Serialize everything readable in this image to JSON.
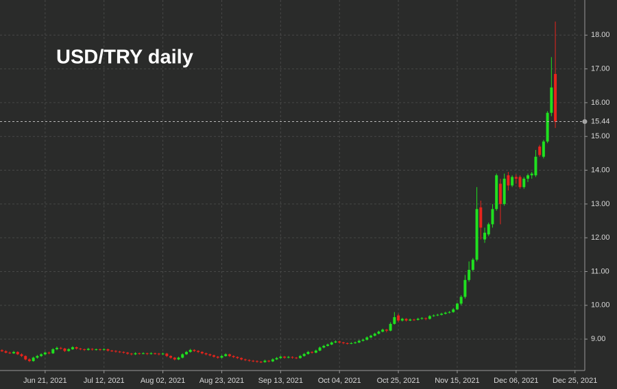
{
  "chart_data": {
    "type": "candlestick",
    "title": "USD/TRY daily",
    "up_color": "#1fe01f",
    "down_color": "#e8241c",
    "grid": true,
    "last_price": 15.44,
    "xlim": [
      "2021-06-04",
      "2021-12-30"
    ],
    "ylim": [
      8.07,
      19.04
    ],
    "xticks": [
      {
        "value": "2021-06-21",
        "label": "Jun 21, 2021"
      },
      {
        "value": "2021-07-12",
        "label": "Jul 12, 2021"
      },
      {
        "value": "2021-08-02",
        "label": "Aug 02, 2021"
      },
      {
        "value": "2021-08-23",
        "label": "Aug 23, 2021"
      },
      {
        "value": "2021-09-13",
        "label": "Sep 13, 2021"
      },
      {
        "value": "2021-10-04",
        "label": "Oct 04, 2021"
      },
      {
        "value": "2021-10-25",
        "label": "Oct 25, 2021"
      },
      {
        "value": "2021-11-15",
        "label": "Nov 15, 2021"
      },
      {
        "value": "2021-12-06",
        "label": "Dec 06, 2021"
      },
      {
        "value": "2021-12-25",
        "label": "Dec 25, 2021"
      }
    ],
    "yticks": [
      {
        "value": 9,
        "label": "9.00"
      },
      {
        "value": 10,
        "label": "10.00"
      },
      {
        "value": 11,
        "label": "11.00"
      },
      {
        "value": 12,
        "label": "12.00"
      },
      {
        "value": 13,
        "label": "13.00"
      },
      {
        "value": 14,
        "label": "14.00"
      },
      {
        "value": 15,
        "label": "15.00"
      },
      {
        "value": 16,
        "label": "16.00"
      },
      {
        "value": 17,
        "label": "17.00"
      },
      {
        "value": 18,
        "label": "18.00"
      }
    ],
    "x": [
      "2021-06-04",
      "2021-06-07",
      "2021-06-08",
      "2021-06-09",
      "2021-06-10",
      "2021-06-11",
      "2021-06-14",
      "2021-06-15",
      "2021-06-16",
      "2021-06-17",
      "2021-06-18",
      "2021-06-21",
      "2021-06-22",
      "2021-06-23",
      "2021-06-24",
      "2021-06-25",
      "2021-06-28",
      "2021-06-29",
      "2021-06-30",
      "2021-07-01",
      "2021-07-02",
      "2021-07-05",
      "2021-07-06",
      "2021-07-07",
      "2021-07-08",
      "2021-07-09",
      "2021-07-12",
      "2021-07-13",
      "2021-07-14",
      "2021-07-15",
      "2021-07-16",
      "2021-07-19",
      "2021-07-20",
      "2021-07-21",
      "2021-07-22",
      "2021-07-23",
      "2021-07-26",
      "2021-07-27",
      "2021-07-28",
      "2021-07-29",
      "2021-07-30",
      "2021-08-02",
      "2021-08-03",
      "2021-08-04",
      "2021-08-05",
      "2021-08-06",
      "2021-08-09",
      "2021-08-10",
      "2021-08-11",
      "2021-08-12",
      "2021-08-13",
      "2021-08-16",
      "2021-08-17",
      "2021-08-18",
      "2021-08-19",
      "2021-08-20",
      "2021-08-23",
      "2021-08-24",
      "2021-08-25",
      "2021-08-26",
      "2021-08-27",
      "2021-08-30",
      "2021-08-31",
      "2021-09-01",
      "2021-09-02",
      "2021-09-03",
      "2021-09-06",
      "2021-09-07",
      "2021-09-08",
      "2021-09-09",
      "2021-09-10",
      "2021-09-13",
      "2021-09-14",
      "2021-09-15",
      "2021-09-16",
      "2021-09-17",
      "2021-09-20",
      "2021-09-21",
      "2021-09-22",
      "2021-09-23",
      "2021-09-24",
      "2021-09-27",
      "2021-09-28",
      "2021-09-29",
      "2021-09-30",
      "2021-10-01",
      "2021-10-04",
      "2021-10-05",
      "2021-10-06",
      "2021-10-07",
      "2021-10-08",
      "2021-10-11",
      "2021-10-12",
      "2021-10-13",
      "2021-10-14",
      "2021-10-15",
      "2021-10-18",
      "2021-10-19",
      "2021-10-20",
      "2021-10-21",
      "2021-10-22",
      "2021-10-25",
      "2021-10-26",
      "2021-10-27",
      "2021-10-28",
      "2021-10-29",
      "2021-11-01",
      "2021-11-02",
      "2021-11-03",
      "2021-11-04",
      "2021-11-05",
      "2021-11-08",
      "2021-11-09",
      "2021-11-10",
      "2021-11-11",
      "2021-11-12",
      "2021-11-15",
      "2021-11-16",
      "2021-11-17",
      "2021-11-18",
      "2021-11-19",
      "2021-11-22",
      "2021-11-23",
      "2021-11-24",
      "2021-11-25",
      "2021-11-26",
      "2021-11-29",
      "2021-11-30",
      "2021-12-01",
      "2021-12-02",
      "2021-12-03",
      "2021-12-06",
      "2021-12-07",
      "2021-12-08",
      "2021-12-09",
      "2021-12-10",
      "2021-12-13",
      "2021-12-14",
      "2021-12-15",
      "2021-12-16",
      "2021-12-17",
      "2021-12-20"
    ],
    "open": [
      8.67,
      8.64,
      8.6,
      8.58,
      8.62,
      8.55,
      8.5,
      8.4,
      8.35,
      8.45,
      8.5,
      8.55,
      8.6,
      8.58,
      8.7,
      8.74,
      8.72,
      8.65,
      8.7,
      8.76,
      8.72,
      8.7,
      8.68,
      8.71,
      8.69,
      8.7,
      8.68,
      8.7,
      8.66,
      8.65,
      8.63,
      8.62,
      8.6,
      8.57,
      8.55,
      8.58,
      8.57,
      8.58,
      8.56,
      8.58,
      8.57,
      8.55,
      8.57,
      8.5,
      8.45,
      8.4,
      8.45,
      8.55,
      8.62,
      8.68,
      8.65,
      8.62,
      8.58,
      8.55,
      8.52,
      8.48,
      8.45,
      8.5,
      8.55,
      8.5,
      8.47,
      8.44,
      8.4,
      8.38,
      8.36,
      8.35,
      8.33,
      8.32,
      8.36,
      8.34,
      8.4,
      8.44,
      8.48,
      8.45,
      8.47,
      8.45,
      8.44,
      8.5,
      8.56,
      8.62,
      8.6,
      8.66,
      8.75,
      8.8,
      8.84,
      8.9,
      8.93,
      8.9,
      8.88,
      8.87,
      8.88,
      8.9,
      8.95,
      8.98,
      9.05,
      9.1,
      9.16,
      9.22,
      9.28,
      9.25,
      9.45,
      9.7,
      9.55,
      9.6,
      9.55,
      9.58,
      9.57,
      9.6,
      9.62,
      9.6,
      9.68,
      9.7,
      9.72,
      9.75,
      9.78,
      9.8,
      9.88,
      10.05,
      10.25,
      10.75,
      11.05,
      11.35,
      12.9,
      11.95,
      12.1,
      12.4,
      12.85,
      13.6,
      13.0,
      13.85,
      13.55,
      13.8,
      13.8,
      13.5,
      13.75,
      13.85,
      13.85,
      14.7,
      14.4,
      14.85,
      15.7,
      16.85
    ],
    "high": [
      8.7,
      8.67,
      8.63,
      8.65,
      8.64,
      8.58,
      8.52,
      8.43,
      8.48,
      8.53,
      8.58,
      8.63,
      8.63,
      8.73,
      8.78,
      8.77,
      8.74,
      8.73,
      8.79,
      8.78,
      8.74,
      8.72,
      8.74,
      8.73,
      8.72,
      8.72,
      8.73,
      8.72,
      8.68,
      8.67,
      8.65,
      8.64,
      8.62,
      8.59,
      8.61,
      8.6,
      8.61,
      8.6,
      8.61,
      8.6,
      8.59,
      8.6,
      8.59,
      8.52,
      8.47,
      8.48,
      8.58,
      8.65,
      8.71,
      8.7,
      8.67,
      8.64,
      8.6,
      8.57,
      8.54,
      8.5,
      8.53,
      8.58,
      8.57,
      8.52,
      8.49,
      8.46,
      8.42,
      8.4,
      8.38,
      8.37,
      8.35,
      8.39,
      8.38,
      8.43,
      8.47,
      8.51,
      8.5,
      8.5,
      8.49,
      8.47,
      8.53,
      8.59,
      8.65,
      8.64,
      8.69,
      8.78,
      8.83,
      8.87,
      8.93,
      8.96,
      8.95,
      8.92,
      8.9,
      8.91,
      8.93,
      8.98,
      9.01,
      9.08,
      9.13,
      9.19,
      9.25,
      9.31,
      9.3,
      9.5,
      9.8,
      9.75,
      9.63,
      9.62,
      9.61,
      9.6,
      9.63,
      9.65,
      9.64,
      9.71,
      9.73,
      9.75,
      9.78,
      9.81,
      9.83,
      9.92,
      10.08,
      10.3,
      10.9,
      11.3,
      11.4,
      13.5,
      13.1,
      12.3,
      12.45,
      13.0,
      13.9,
      13.75,
      13.9,
      13.95,
      13.85,
      13.88,
      13.85,
      13.8,
      13.9,
      13.95,
      14.6,
      14.75,
      14.9,
      15.75,
      17.35,
      18.4
    ],
    "low": [
      8.62,
      8.58,
      8.56,
      8.56,
      8.53,
      8.47,
      8.37,
      8.32,
      8.33,
      8.42,
      8.47,
      8.52,
      8.55,
      8.56,
      8.67,
      8.69,
      8.62,
      8.63,
      8.68,
      8.69,
      8.67,
      8.65,
      8.66,
      8.66,
      8.66,
      8.65,
      8.66,
      8.63,
      8.62,
      8.6,
      8.59,
      8.57,
      8.54,
      8.52,
      8.53,
      8.54,
      8.55,
      8.53,
      8.54,
      8.54,
      8.52,
      8.53,
      8.47,
      8.42,
      8.37,
      8.38,
      8.43,
      8.53,
      8.6,
      8.62,
      8.59,
      8.55,
      8.52,
      8.49,
      8.45,
      8.42,
      8.43,
      8.48,
      8.47,
      8.44,
      8.41,
      8.37,
      8.35,
      8.33,
      8.32,
      8.3,
      8.29,
      8.3,
      8.31,
      8.32,
      8.38,
      8.42,
      8.42,
      8.43,
      8.42,
      8.41,
      8.42,
      8.48,
      8.54,
      8.57,
      8.58,
      8.64,
      8.73,
      8.78,
      8.82,
      8.88,
      8.87,
      8.85,
      8.84,
      8.85,
      8.86,
      8.88,
      8.93,
      8.96,
      9.03,
      9.08,
      9.14,
      9.2,
      9.2,
      9.23,
      9.43,
      9.5,
      9.52,
      9.52,
      9.53,
      9.54,
      9.55,
      9.58,
      9.56,
      9.58,
      9.66,
      9.68,
      9.7,
      9.73,
      9.76,
      9.78,
      9.86,
      10.0,
      10.2,
      10.7,
      11.0,
      11.3,
      11.95,
      11.85,
      12.05,
      12.3,
      12.8,
      12.4,
      12.95,
      13.4,
      13.5,
      13.6,
      13.45,
      13.45,
      13.65,
      13.75,
      13.8,
      14.4,
      14.35,
      14.8,
      15.6,
      15.25
    ],
    "close": [
      8.64,
      8.6,
      8.58,
      8.62,
      8.55,
      8.5,
      8.4,
      8.35,
      8.45,
      8.5,
      8.55,
      8.6,
      8.58,
      8.7,
      8.74,
      8.72,
      8.65,
      8.7,
      8.76,
      8.72,
      8.7,
      8.68,
      8.71,
      8.69,
      8.7,
      8.68,
      8.7,
      8.66,
      8.65,
      8.63,
      8.62,
      8.6,
      8.57,
      8.55,
      8.58,
      8.57,
      8.58,
      8.56,
      8.58,
      8.57,
      8.55,
      8.57,
      8.5,
      8.45,
      8.4,
      8.45,
      8.55,
      8.62,
      8.68,
      8.65,
      8.62,
      8.58,
      8.55,
      8.52,
      8.48,
      8.45,
      8.5,
      8.55,
      8.5,
      8.47,
      8.44,
      8.4,
      8.38,
      8.36,
      8.35,
      8.33,
      8.32,
      8.36,
      8.34,
      8.4,
      8.44,
      8.48,
      8.45,
      8.47,
      8.45,
      8.44,
      8.5,
      8.56,
      8.62,
      8.6,
      8.66,
      8.75,
      8.8,
      8.84,
      8.9,
      8.93,
      8.9,
      8.88,
      8.87,
      8.88,
      8.9,
      8.95,
      8.98,
      9.05,
      9.1,
      9.16,
      9.22,
      9.28,
      9.25,
      9.45,
      9.65,
      9.55,
      9.6,
      9.55,
      9.58,
      9.57,
      9.6,
      9.62,
      9.6,
      9.68,
      9.7,
      9.72,
      9.75,
      9.78,
      9.8,
      9.88,
      10.05,
      10.25,
      10.75,
      11.05,
      11.35,
      12.85,
      12.3,
      12.15,
      12.4,
      12.85,
      13.85,
      13.0,
      13.75,
      13.55,
      13.8,
      13.75,
      13.5,
      13.75,
      13.85,
      13.9,
      14.4,
      14.45,
      14.85,
      15.7,
      16.45,
      15.44
    ]
  }
}
